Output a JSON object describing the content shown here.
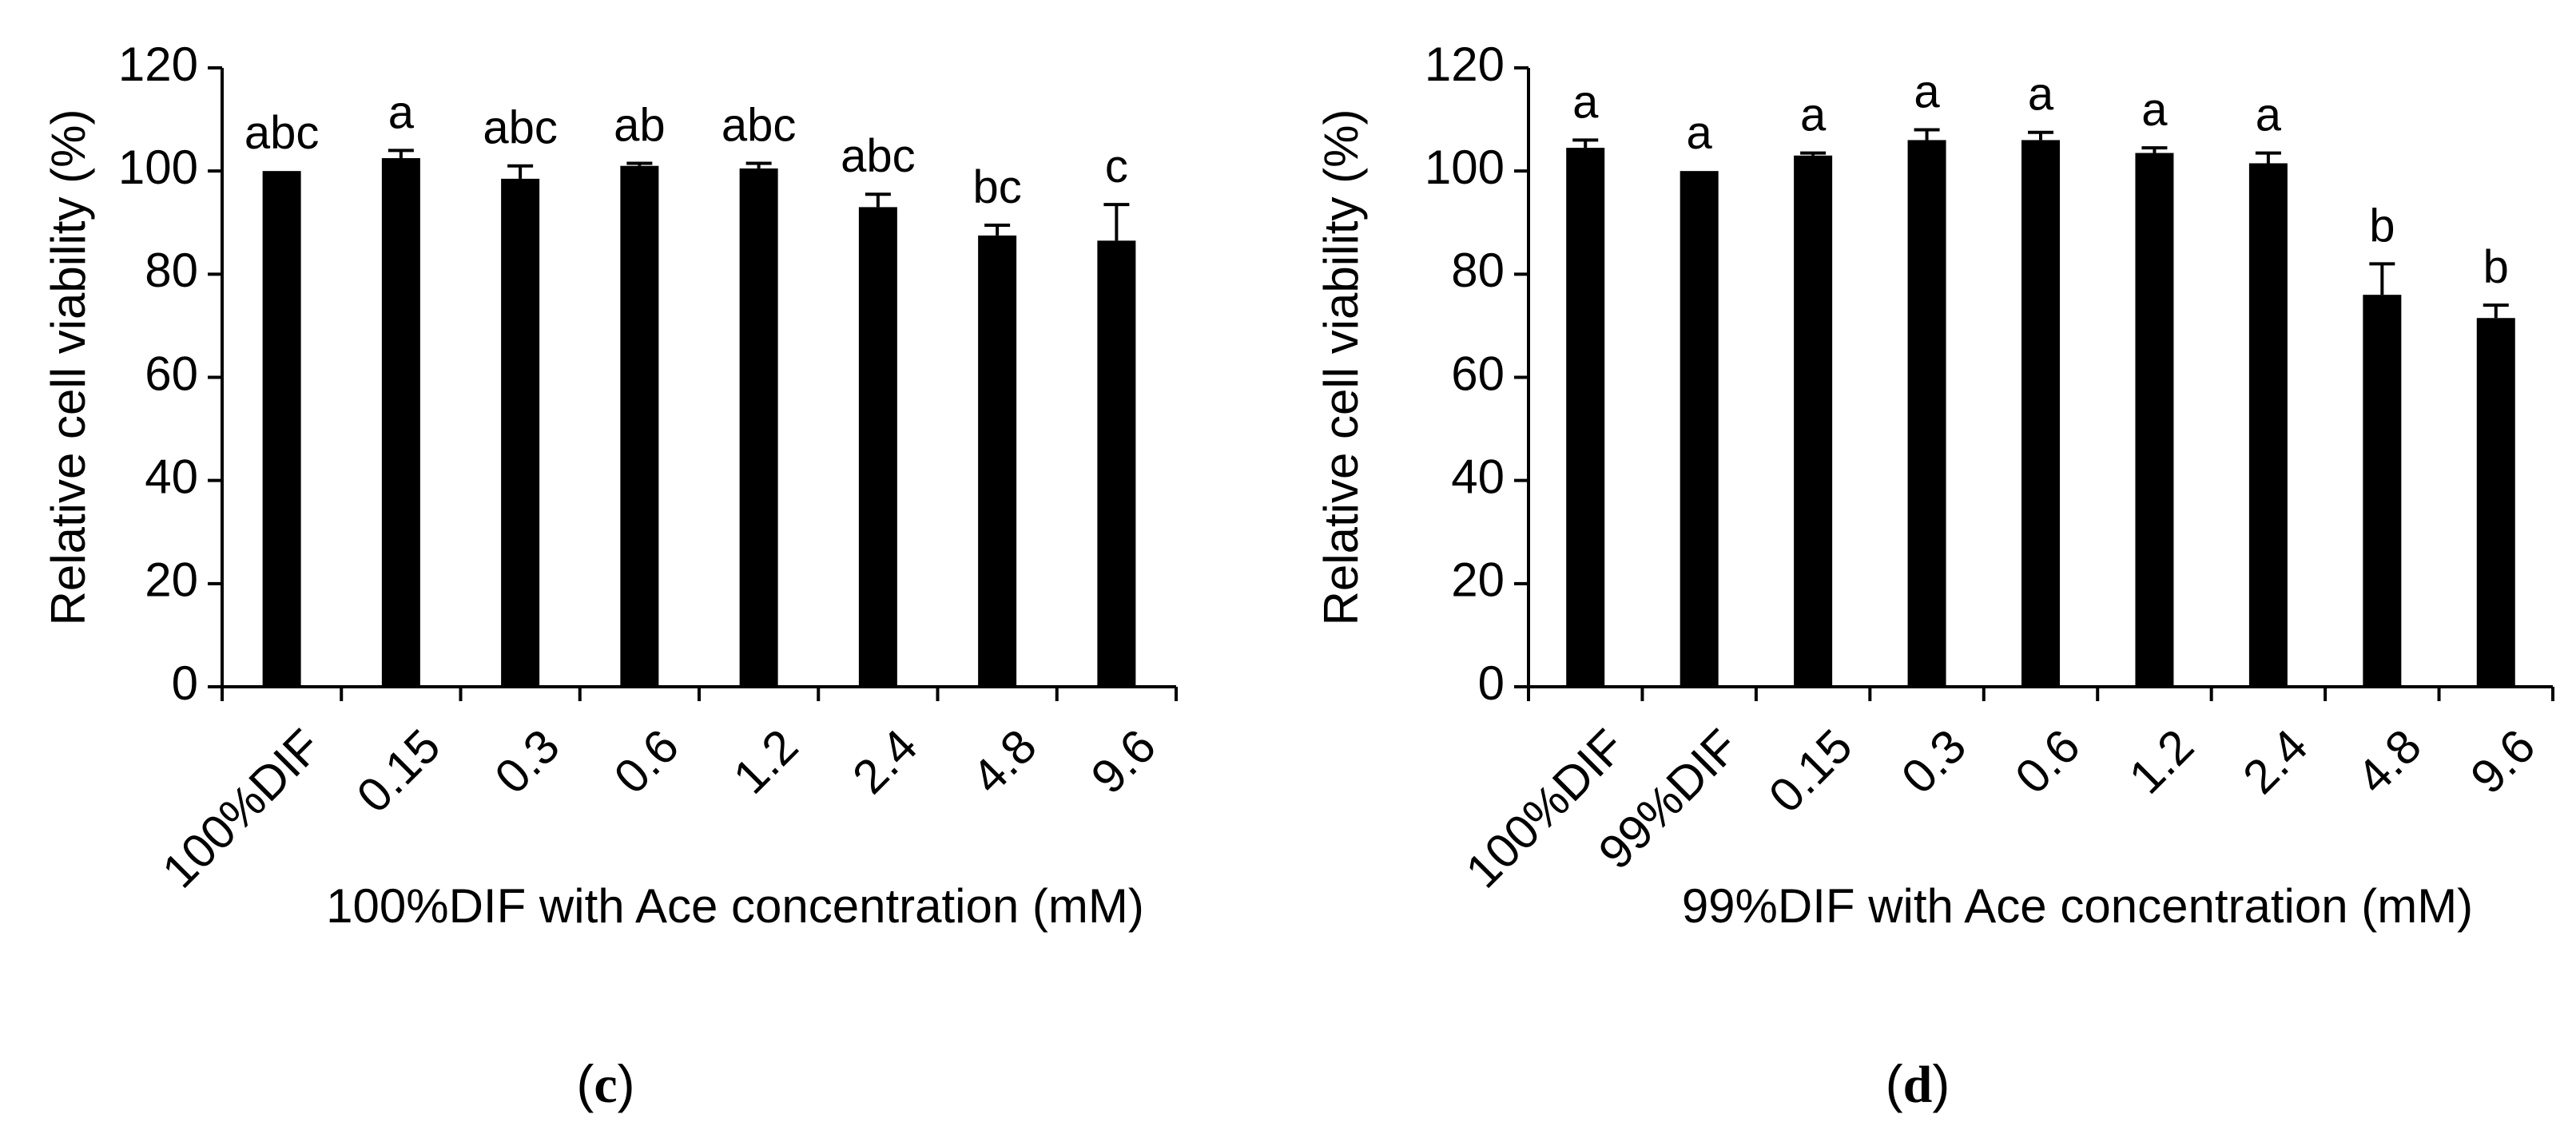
{
  "chart_data": [
    {
      "type": "bar",
      "panel_label": "(c)",
      "panel_letter": "c",
      "ylabel": "Relative cell viability (%)",
      "xlabel": "100%DIF with Ace concentration (mM)",
      "ylim": [
        0,
        120
      ],
      "yticks": [
        0,
        20,
        40,
        60,
        80,
        100,
        120
      ],
      "categories": [
        "100%DIF",
        "0.15",
        "0.3",
        "0.6",
        "1.2",
        "2.4",
        "4.8",
        "9.6"
      ],
      "values": [
        100,
        102.5,
        98.5,
        101,
        100.5,
        93,
        87.5,
        86.5
      ],
      "errors": [
        0,
        1.5,
        2.5,
        0.5,
        1,
        2.5,
        2,
        7
      ],
      "significance_letters": [
        "abc",
        "a",
        "abc",
        "ab",
        "abc",
        "abc",
        "bc",
        "c"
      ],
      "bar_color": "#000000",
      "grid": false,
      "legend": "none"
    },
    {
      "type": "bar",
      "panel_label": "(d)",
      "panel_letter": "d",
      "ylabel": "Relative cell viability (%)",
      "xlabel": "99%DIF with Ace concentration (mM)",
      "ylim": [
        0,
        120
      ],
      "yticks": [
        0,
        20,
        40,
        60,
        80,
        100,
        120
      ],
      "categories": [
        "100%DIF",
        "99%DIF",
        "0.15",
        "0.3",
        "0.6",
        "1.2",
        "2.4",
        "4.8",
        "9.6"
      ],
      "values": [
        104.5,
        100,
        103,
        106,
        106,
        103.5,
        101.5,
        76,
        71.5
      ],
      "errors": [
        1.5,
        0,
        0.5,
        2,
        1.5,
        1,
        2,
        6,
        2.5
      ],
      "significance_letters": [
        "a",
        "a",
        "a",
        "a",
        "a",
        "a",
        "a",
        "b",
        "b"
      ],
      "bar_color": "#000000",
      "grid": false,
      "legend": "none"
    }
  ]
}
